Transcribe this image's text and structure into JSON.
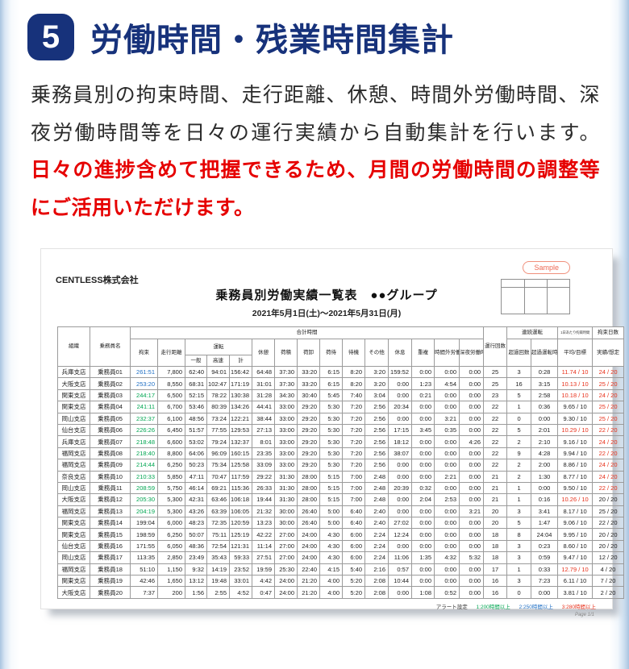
{
  "page": {
    "badge_number": "5",
    "title": "労働時間・残業時間集計",
    "paragraph_black": "乗務員別の拘束時間、走行距離、休憩、時間外労働時間、深夜労働時間等を日々の運行実績から自動集計を行います。",
    "paragraph_red": "日々の進捗含めて把握できるため、月間の労働時間の調整等にご活用いただけます。"
  },
  "report": {
    "company": "CENTLESS株式会社",
    "sample_badge": "Sample",
    "title": "乗務員別労働実績一覧表　●●グループ",
    "period": "2021年5月1日(土)～2021年5月31日(月)",
    "footer": {
      "alert_label": "アラート設定",
      "alerts": [
        {
          "text": "1:200時間以上",
          "color": "#00a651"
        },
        {
          "text": "2:250時間以上",
          "color": "#1f6fc4"
        },
        {
          "text": "3:280時間以上",
          "color": "#e8321c"
        }
      ],
      "page_label": "Page 1/1"
    },
    "table": {
      "header": {
        "org": "組織",
        "driver": "乗務員名",
        "total_time_group": "合計時間",
        "restraint": "拘束",
        "distance": "走行距離",
        "driving_group": "運転",
        "driving_general": "一般",
        "driving_highway": "高速",
        "driving_total": "計",
        "break": "休憩",
        "loading": "荷積",
        "unloading": "荷卸",
        "cargo_wait": "荷待",
        "standby": "待機",
        "other": "その他",
        "rest": "休息",
        "overlap": "重複",
        "overtime": "時間外労働時間",
        "midnight": "深夜労働時間",
        "trips": "運行回数",
        "continuous_group": "連続運転",
        "over_count": "超過回数",
        "over_drive_time": "超過運転時間",
        "daily_restraint_group": "1日あたり拘束時間",
        "avg_target": "平均/目標",
        "days_group": "拘束日数",
        "actual_planned": "実績/想定"
      },
      "rows": [
        {
          "cells": [
            "兵庫支店",
            "乗務員01",
            "261:51",
            "7,800",
            "62:40",
            "94:01",
            "156:42",
            "64:48",
            "37:30",
            "33:20",
            "6:15",
            "8:20",
            "3:20",
            "159:52",
            "0:00",
            "0:00",
            "0:00",
            "25",
            "3",
            "0:28",
            "11.74 / 10",
            "24 / 20"
          ],
          "k": "blue",
          "avg_red": true,
          "days_red": true
        },
        {
          "cells": [
            "大阪支店",
            "乗務員02",
            "253:20",
            "8,550",
            "68:31",
            "102:47",
            "171:19",
            "31:01",
            "37:30",
            "33:20",
            "6:15",
            "8:20",
            "3:20",
            "0:00",
            "1:23",
            "4:54",
            "0:00",
            "25",
            "16",
            "3:15",
            "10.13 / 10",
            "25 / 20"
          ],
          "k": "blue",
          "avg_red": true,
          "days_red": true
        },
        {
          "cells": [
            "関東支店",
            "乗務員03",
            "244:17",
            "6,500",
            "52:15",
            "78:22",
            "130:38",
            "31:28",
            "34:30",
            "30:40",
            "5:45",
            "7:40",
            "3:04",
            "0:00",
            "0:21",
            "0:00",
            "0:00",
            "23",
            "5",
            "2:58",
            "10.18 / 10",
            "24 / 20"
          ],
          "k": "green",
          "avg_red": true,
          "days_red": true
        },
        {
          "cells": [
            "関東支店",
            "乗務員04",
            "241:11",
            "6,700",
            "53:46",
            "80:39",
            "134:26",
            "44:41",
            "33:00",
            "29:20",
            "5:30",
            "7:20",
            "2:56",
            "20:34",
            "0:00",
            "0:00",
            "0:00",
            "22",
            "1",
            "0:36",
            "9.65 / 10",
            "25 / 20"
          ],
          "k": "green",
          "avg_red": false,
          "days_red": true
        },
        {
          "cells": [
            "岡山支店",
            "乗務員05",
            "232:37",
            "6,100",
            "48:56",
            "73:24",
            "122:21",
            "38:44",
            "33:00",
            "29:20",
            "5:30",
            "7:20",
            "2:56",
            "0:00",
            "0:00",
            "3:21",
            "0:00",
            "22",
            "0",
            "0:00",
            "9.30 / 10",
            "25 / 20"
          ],
          "k": "green",
          "avg_red": false,
          "days_red": true
        },
        {
          "cells": [
            "仙台支店",
            "乗務員06",
            "226:26",
            "6,450",
            "51:57",
            "77:55",
            "129:53",
            "27:13",
            "33:00",
            "29:20",
            "5:30",
            "7:20",
            "2:56",
            "17:15",
            "3:45",
            "0:35",
            "0:00",
            "22",
            "5",
            "2:01",
            "10.29 / 10",
            "22 / 20"
          ],
          "k": "green",
          "avg_red": true,
          "days_red": true
        },
        {
          "cells": [
            "兵庫支店",
            "乗務員07",
            "218:48",
            "6,600",
            "53:02",
            "79:24",
            "132:37",
            "8:01",
            "33:00",
            "29:20",
            "5:30",
            "7:20",
            "2:56",
            "18:12",
            "0:00",
            "0:00",
            "4:26",
            "22",
            "2",
            "2:10",
            "9.16 / 10",
            "24 / 20"
          ],
          "k": "green",
          "avg_red": false,
          "days_red": true
        },
        {
          "cells": [
            "福岡支店",
            "乗務員08",
            "218:40",
            "8,800",
            "64:06",
            "96:09",
            "160:15",
            "23:35",
            "33:00",
            "29:20",
            "5:30",
            "7:20",
            "2:56",
            "38:07",
            "0:00",
            "0:00",
            "0:00",
            "22",
            "9",
            "4:28",
            "9.94 / 10",
            "22 / 20"
          ],
          "k": "green",
          "avg_red": false,
          "days_red": true
        },
        {
          "cells": [
            "福岡支店",
            "乗務員09",
            "214:44",
            "6,250",
            "50:23",
            "75:34",
            "125:58",
            "33:09",
            "33:00",
            "29:20",
            "5:30",
            "7:20",
            "2:56",
            "0:00",
            "0:00",
            "0:00",
            "0:00",
            "22",
            "2",
            "2:00",
            "8.86 / 10",
            "24 / 20"
          ],
          "k": "green",
          "avg_red": false,
          "days_red": true
        },
        {
          "cells": [
            "奈良支店",
            "乗務員10",
            "210:33",
            "5,850",
            "47:11",
            "70:47",
            "117:59",
            "29:22",
            "31:30",
            "28:00",
            "5:15",
            "7:00",
            "2:48",
            "0:00",
            "0:00",
            "2:21",
            "0:00",
            "21",
            "2",
            "1:30",
            "8.77 / 10",
            "24 / 20"
          ],
          "k": "green",
          "avg_red": false,
          "days_red": true
        },
        {
          "cells": [
            "岡山支店",
            "乗務員11",
            "208:59",
            "5,750",
            "46:14",
            "69:21",
            "115:36",
            "26:33",
            "31:30",
            "28:00",
            "5:15",
            "7:00",
            "2:48",
            "20:39",
            "0:32",
            "0:00",
            "0:00",
            "21",
            "1",
            "0:00",
            "9.50 / 10",
            "22 / 20"
          ],
          "k": "green",
          "avg_red": false,
          "days_red": true
        },
        {
          "cells": [
            "大阪支店",
            "乗務員12",
            "205:30",
            "5,300",
            "42:31",
            "63:46",
            "106:18",
            "19:44",
            "31:30",
            "28:00",
            "5:15",
            "7:00",
            "2:48",
            "0:00",
            "2:04",
            "2:53",
            "0:00",
            "21",
            "1",
            "0:16",
            "10.26 / 10",
            "20 / 20"
          ],
          "k": "green",
          "avg_red": true,
          "days_red": false
        },
        {
          "cells": [
            "福岡支店",
            "乗務員13",
            "204:19",
            "5,300",
            "43:26",
            "63:39",
            "106:05",
            "21:32",
            "30:00",
            "26:40",
            "5:00",
            "6:40",
            "2:40",
            "0:00",
            "0:00",
            "0:00",
            "3:21",
            "20",
            "3",
            "3:41",
            "8.17 / 10",
            "25 / 20"
          ],
          "k": "green",
          "avg_red": false,
          "days_red": false
        },
        {
          "cells": [
            "関東支店",
            "乗務員14",
            "199:04",
            "6,000",
            "48:23",
            "72:35",
            "120:59",
            "13:23",
            "30:00",
            "26:40",
            "5:00",
            "6:40",
            "2:40",
            "27:02",
            "0:00",
            "0:00",
            "0:00",
            "20",
            "5",
            "1:47",
            "9.06 / 10",
            "22 / 20"
          ],
          "k": "",
          "avg_red": false,
          "days_red": false
        },
        {
          "cells": [
            "関東支店",
            "乗務員15",
            "198:59",
            "6,250",
            "50:07",
            "75:11",
            "125:19",
            "42:22",
            "27:00",
            "24:00",
            "4:30",
            "6:00",
            "2:24",
            "12:24",
            "0:00",
            "0:00",
            "0:00",
            "18",
            "8",
            "24:04",
            "9.95 / 10",
            "20 / 20"
          ],
          "k": "",
          "avg_red": false,
          "days_red": false
        },
        {
          "cells": [
            "仙台支店",
            "乗務員16",
            "171:55",
            "6,050",
            "48:36",
            "72:54",
            "121:31",
            "11:14",
            "27:00",
            "24:00",
            "4:30",
            "6:00",
            "2:24",
            "0:00",
            "0:00",
            "0:00",
            "0:00",
            "18",
            "3",
            "0:23",
            "8.60 / 10",
            "20 / 20"
          ],
          "k": "",
          "avg_red": false,
          "days_red": false
        },
        {
          "cells": [
            "岡山支店",
            "乗務員17",
            "113:35",
            "2,850",
            "23:49",
            "35:43",
            "59:33",
            "27:51",
            "27:00",
            "24:00",
            "4:30",
            "6:00",
            "2:24",
            "11:06",
            "1:35",
            "4:32",
            "5:32",
            "18",
            "3",
            "0:59",
            "9.47 / 10",
            "12 / 20"
          ],
          "k": "",
          "avg_red": false,
          "days_red": false
        },
        {
          "cells": [
            "福岡支店",
            "乗務員18",
            "51:10",
            "1,150",
            "9:32",
            "14:19",
            "23:52",
            "19:59",
            "25:30",
            "22:40",
            "4:15",
            "5:40",
            "2:16",
            "0:57",
            "0:00",
            "0:00",
            "0:00",
            "17",
            "1",
            "0:33",
            "12.79 / 10",
            "4 / 20"
          ],
          "k": "",
          "avg_red": true,
          "days_red": false
        },
        {
          "cells": [
            "関東支店",
            "乗務員19",
            "42:46",
            "1,650",
            "13:12",
            "19:48",
            "33:01",
            "4:42",
            "24:00",
            "21:20",
            "4:00",
            "5:20",
            "2:08",
            "10:44",
            "0:00",
            "0:00",
            "0:00",
            "16",
            "3",
            "7:23",
            "6.11 / 10",
            "7 / 20"
          ],
          "k": "",
          "avg_red": false,
          "days_red": false
        },
        {
          "cells": [
            "大阪支店",
            "乗務員20",
            "7:37",
            "200",
            "1:56",
            "2:55",
            "4:52",
            "0:47",
            "24:00",
            "21:20",
            "4:00",
            "5:20",
            "2:08",
            "0:00",
            "1:08",
            "0:52",
            "0:00",
            "16",
            "0",
            "0:00",
            "3.81 / 10",
            "2 / 20"
          ],
          "k": "",
          "avg_red": false,
          "days_red": false
        }
      ]
    }
  },
  "colors": {
    "navy": "#17327b",
    "text_red": "#e60000",
    "value_blue": "#1f6fc4",
    "value_green": "#00a651",
    "value_red": "#e8321c"
  }
}
